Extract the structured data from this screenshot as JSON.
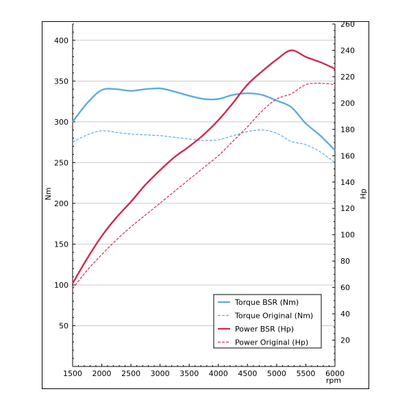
{
  "chart_data": {
    "type": "line",
    "xlabel": "rpm",
    "ylabel_left": "Nm",
    "ylabel_right": "Hp",
    "xlim": [
      1500,
      6000
    ],
    "ylim_left": [
      0,
      420
    ],
    "ylim_right": [
      0,
      260
    ],
    "x_ticks": [
      1500,
      2000,
      2500,
      3000,
      3500,
      4000,
      4500,
      5000,
      5500,
      6000
    ],
    "y_ticks_left": [
      50,
      100,
      150,
      200,
      250,
      300,
      350,
      400
    ],
    "y_ticks_right": [
      20,
      40,
      60,
      80,
      100,
      120,
      140,
      160,
      180,
      200,
      220,
      240,
      260
    ],
    "grid": "horizontal",
    "legend_position": "bottom-right",
    "x": [
      1500,
      1750,
      2000,
      2250,
      2500,
      2750,
      3000,
      3250,
      3500,
      3750,
      4000,
      4250,
      4500,
      4750,
      5000,
      5250,
      5500,
      5750,
      6000
    ],
    "series": [
      {
        "name": "Torque BSR (Nm)",
        "axis": "left",
        "color": "#5aade0",
        "dash": "solid",
        "values": [
          300,
          323,
          339,
          340,
          338,
          340,
          341,
          337,
          332,
          328,
          328,
          333,
          335,
          333,
          326,
          318,
          298,
          283,
          265
        ]
      },
      {
        "name": "Torque Original (Nm)",
        "axis": "left",
        "color": "#5aade0",
        "dash": "dashed",
        "values": [
          275,
          284,
          289,
          287,
          285,
          284,
          283,
          281,
          279,
          277,
          278,
          283,
          288,
          290,
          286,
          276,
          272,
          263,
          250
        ]
      },
      {
        "name": "Power BSR (Hp)",
        "axis": "right",
        "color": "#d0294b",
        "dash": "solid",
        "values": [
          63,
          82,
          99,
          113,
          125,
          138,
          149,
          159,
          167,
          176,
          187,
          200,
          214,
          224,
          233,
          240,
          235,
          231,
          226
        ]
      },
      {
        "name": "Power Original (Hp)",
        "axis": "right",
        "color": "#d0294b",
        "dash": "dashed",
        "values": [
          59,
          73,
          85,
          96,
          106,
          115,
          124,
          133,
          142,
          151,
          160,
          171,
          182,
          194,
          203,
          207,
          214,
          215,
          214
        ]
      }
    ]
  }
}
